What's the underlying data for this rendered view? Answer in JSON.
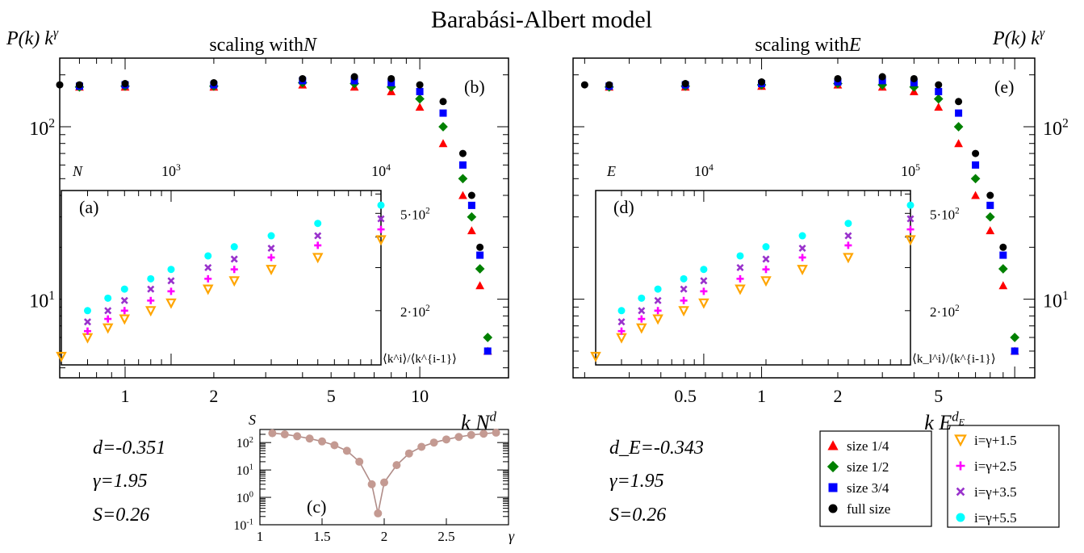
{
  "title": "Barabási-Albert model",
  "left": {
    "subtitle_prefix": "scaling with ",
    "subtitle_var": "N",
    "ylabel": "P(k) k",
    "ylabel_sup": "γ",
    "panel_main": "(b)",
    "panel_inset": "(a)",
    "xlabel": "k N",
    "xlabel_sup": "d",
    "inset_top_var": "N",
    "inset_top_ticks": [
      "10",
      "10"
    ],
    "inset_top_tick_sups": [
      "3",
      "4"
    ],
    "inset_right_ticks": [
      "5·10",
      "2·10"
    ],
    "inset_right_tick_sups": [
      "2",
      "2"
    ],
    "inset_ylabel": "⟨k^i⟩/⟨k^{i-1}⟩",
    "main_y_ticks": [
      "10",
      "10"
    ],
    "main_y_tick_sups": [
      "2",
      "1"
    ],
    "main_x_ticks": [
      "1",
      "2",
      "5",
      "10"
    ],
    "stats": {
      "d": "d=-0.351",
      "gamma": "γ=1.95",
      "S": "S=0.26"
    }
  },
  "right": {
    "subtitle_prefix": "scaling with ",
    "subtitle_var": "E",
    "ylabel": "P(k) k",
    "ylabel_sup": "γ",
    "panel_main": "(e)",
    "panel_inset": "(d)",
    "xlabel": "k E",
    "xlabel_sup": "d",
    "xlabel_sup_sub": "E",
    "inset_top_var": "E",
    "inset_top_ticks": [
      "10",
      "10"
    ],
    "inset_top_tick_sups": [
      "4",
      "5"
    ],
    "inset_right_ticks": [
      "5·10",
      "2·10"
    ],
    "inset_right_tick_sups": [
      "2",
      "2"
    ],
    "inset_ylabel": "⟨k_l^i⟩/⟨k^{i-1}⟩",
    "main_y_ticks": [
      "10",
      "10"
    ],
    "main_y_tick_sups": [
      "2",
      "1"
    ],
    "main_x_ticks": [
      "0.5",
      "1",
      "2",
      "5"
    ],
    "stats": {
      "d": "d_E=-0.343",
      "gamma": "γ=1.95",
      "S": "S=0.26"
    }
  },
  "inset_c": {
    "panel": "(c)",
    "ylabel": "S",
    "xlabel": "γ",
    "x_ticks": [
      "1",
      "1.5",
      "2",
      "2.5"
    ],
    "y_ticks": [
      "10",
      "10",
      "10",
      "10",
      "10"
    ],
    "y_tick_sups": [
      "2",
      "1",
      "0",
      "-1",
      ""
    ]
  },
  "legend_size": [
    {
      "label": "size 1/4",
      "color": "#ff0000",
      "marker": "triangle"
    },
    {
      "label": "size 1/2",
      "color": "#008000",
      "marker": "diamond"
    },
    {
      "label": "size 3/4",
      "color": "#0000ff",
      "marker": "square"
    },
    {
      "label": "full size",
      "color": "#000000",
      "marker": "circle"
    }
  ],
  "legend_moment": [
    {
      "label": "i=γ+1.5",
      "color": "#ffa500",
      "marker": "triangle-down"
    },
    {
      "label": "i=γ+2.5",
      "color": "#ff00ff",
      "marker": "plus"
    },
    {
      "label": "i=γ+3.5",
      "color": "#9932cc",
      "marker": "cross"
    },
    {
      "label": "i=γ+5.5",
      "color": "#00ffff",
      "marker": "circle"
    }
  ],
  "chart_data": [
    {
      "type": "scatter",
      "title": "scaling with N",
      "xlabel": "k N^d",
      "ylabel": "P(k) k^γ",
      "xscale": "log",
      "yscale": "log",
      "xlim": [
        0.6,
        20
      ],
      "ylim": [
        3.5,
        250
      ],
      "series": [
        {
          "name": "size 1/4",
          "x": [
            0.7,
            1,
            2,
            4,
            6,
            8,
            10,
            12,
            14,
            15,
            16,
            17
          ],
          "y": [
            170,
            170,
            170,
            175,
            170,
            160,
            130,
            80,
            40,
            25,
            12,
            5
          ]
        },
        {
          "name": "size 1/2",
          "x": [
            0.7,
            1,
            2,
            4,
            6,
            8,
            10,
            12,
            14,
            15,
            16,
            17
          ],
          "y": [
            170,
            172,
            172,
            180,
            178,
            170,
            145,
            100,
            50,
            30,
            15,
            6
          ]
        },
        {
          "name": "size 3/4",
          "x": [
            0.7,
            1,
            2,
            4,
            6,
            8,
            10,
            12,
            14,
            15,
            16,
            17
          ],
          "y": [
            172,
            175,
            175,
            185,
            185,
            180,
            160,
            120,
            60,
            35,
            18,
            5
          ]
        },
        {
          "name": "full size",
          "x": [
            0.6,
            0.7,
            1,
            2,
            4,
            6,
            8,
            10,
            12,
            14,
            15,
            16
          ],
          "y": [
            175,
            175,
            178,
            180,
            190,
            195,
            190,
            175,
            140,
            70,
            40,
            20
          ]
        }
      ]
    },
    {
      "type": "scatter",
      "title": "(a)",
      "xlabel": "N",
      "ylabel": "⟨k^i⟩/⟨k^{i-1}⟩",
      "xscale": "log",
      "yscale": "log",
      "xlim": [
        300,
        10000
      ],
      "ylim": [
        120,
        620
      ],
      "series": [
        {
          "name": "i=γ+1.5",
          "x": [
            300,
            400,
            500,
            600,
            800,
            1000,
            1500,
            2000,
            3000,
            5000,
            10000
          ],
          "y": [
            130,
            155,
            170,
            185,
            200,
            215,
            245,
            265,
            295,
            330,
            390
          ]
        },
        {
          "name": "i=γ+2.5",
          "x": [
            400,
            500,
            600,
            800,
            1000,
            1500,
            2000,
            3000,
            5000,
            10000
          ],
          "y": [
            165,
            185,
            200,
            220,
            240,
            270,
            295,
            330,
            370,
            430
          ]
        },
        {
          "name": "i=γ+3.5",
          "x": [
            400,
            500,
            600,
            800,
            1000,
            1500,
            2000,
            3000,
            5000,
            10000
          ],
          "y": [
            180,
            200,
            220,
            245,
            265,
            300,
            325,
            360,
            405,
            475
          ]
        },
        {
          "name": "i=γ+5.5",
          "x": [
            400,
            500,
            600,
            800,
            1000,
            1500,
            2000,
            3000,
            5000,
            10000
          ],
          "y": [
            200,
            225,
            245,
            270,
            295,
            335,
            365,
            405,
            455,
            540
          ]
        }
      ]
    },
    {
      "type": "line",
      "title": "(c)",
      "xlabel": "γ",
      "ylabel": "S",
      "yscale": "log",
      "xlim": [
        1,
        3
      ],
      "ylim": [
        0.1,
        300
      ],
      "x": [
        1.1,
        1.2,
        1.3,
        1.4,
        1.5,
        1.6,
        1.7,
        1.8,
        1.9,
        1.95,
        2.0,
        2.1,
        2.2,
        2.3,
        2.4,
        2.5,
        2.6,
        2.7,
        2.8,
        2.9
      ],
      "values": [
        220,
        200,
        170,
        140,
        110,
        80,
        50,
        20,
        3,
        0.26,
        3.5,
        15,
        40,
        70,
        100,
        130,
        160,
        190,
        210,
        230
      ]
    },
    {
      "type": "scatter",
      "title": "scaling with E",
      "xlabel": "k E^{d_E}",
      "ylabel": "P(k) k^γ",
      "xscale": "log",
      "yscale": "log",
      "xlim": [
        0.18,
        12
      ],
      "ylim": [
        3.5,
        250
      ],
      "series": [
        {
          "name": "size 1/4",
          "x": [
            0.25,
            0.5,
            1,
            2,
            3,
            4,
            5,
            6,
            7,
            8,
            9,
            10
          ],
          "y": [
            170,
            170,
            172,
            175,
            170,
            160,
            130,
            80,
            40,
            25,
            12,
            5
          ]
        },
        {
          "name": "size 1/2",
          "x": [
            0.25,
            0.5,
            1,
            2,
            3,
            4,
            5,
            6,
            7,
            8,
            9,
            10
          ],
          "y": [
            170,
            172,
            175,
            178,
            175,
            170,
            145,
            100,
            50,
            30,
            15,
            6
          ]
        },
        {
          "name": "size 3/4",
          "x": [
            0.25,
            0.5,
            1,
            2,
            3,
            4,
            5,
            6,
            7,
            8,
            9,
            10
          ],
          "y": [
            172,
            175,
            178,
            182,
            185,
            180,
            160,
            120,
            60,
            35,
            18,
            5
          ]
        },
        {
          "name": "full size",
          "x": [
            0.2,
            0.25,
            0.5,
            1,
            2,
            3,
            4,
            5,
            6,
            7,
            8,
            9
          ],
          "y": [
            175,
            175,
            178,
            182,
            190,
            195,
            190,
            175,
            140,
            70,
            40,
            20
          ]
        }
      ]
    },
    {
      "type": "scatter",
      "title": "(d)",
      "xlabel": "E",
      "ylabel": "⟨k_l^i⟩/⟨k^{i-1}⟩",
      "xscale": "log",
      "yscale": "log",
      "xlim": [
        3000,
        100000
      ],
      "ylim": [
        120,
        620
      ],
      "series": [
        {
          "name": "i=γ+1.5",
          "x": [
            3000,
            4000,
            5000,
            6000,
            8000,
            10000,
            15000,
            20000,
            30000,
            50000,
            100000
          ],
          "y": [
            130,
            155,
            170,
            185,
            200,
            215,
            245,
            265,
            295,
            330,
            390
          ]
        },
        {
          "name": "i=γ+2.5",
          "x": [
            4000,
            5000,
            6000,
            8000,
            10000,
            15000,
            20000,
            30000,
            50000,
            100000
          ],
          "y": [
            165,
            185,
            200,
            220,
            240,
            270,
            295,
            330,
            370,
            430
          ]
        },
        {
          "name": "i=γ+3.5",
          "x": [
            4000,
            5000,
            6000,
            8000,
            10000,
            15000,
            20000,
            30000,
            50000,
            100000
          ],
          "y": [
            180,
            200,
            220,
            245,
            265,
            300,
            325,
            360,
            405,
            475
          ]
        },
        {
          "name": "i=γ+5.5",
          "x": [
            4000,
            5000,
            6000,
            8000,
            10000,
            15000,
            20000,
            30000,
            50000,
            100000
          ],
          "y": [
            200,
            225,
            245,
            270,
            295,
            335,
            365,
            405,
            455,
            540
          ]
        }
      ]
    }
  ]
}
